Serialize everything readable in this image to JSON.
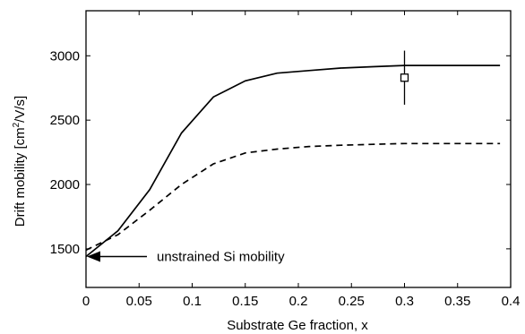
{
  "chart_data": {
    "type": "line",
    "title": "",
    "xlabel": "Substrate Ge fraction, x",
    "ylabel_main": "Drift mobility [cm",
    "ylabel_sup": "2",
    "ylabel_tail": "/V/s]",
    "xlim": [
      0,
      0.4
    ],
    "ylim": [
      1200,
      3350
    ],
    "xticks": [
      0,
      0.05,
      0.1,
      0.15,
      0.2,
      0.25,
      0.3,
      0.35,
      0.4
    ],
    "xtick_labels": [
      "0",
      "0.05",
      "0.1",
      "0.15",
      "0.2",
      "0.25",
      "0.3",
      "0.35",
      "0.4"
    ],
    "yticks": [
      1500,
      2000,
      2500,
      3000
    ],
    "ytick_labels": [
      "1500",
      "2000",
      "2500",
      "3000"
    ],
    "grid": false,
    "series": [
      {
        "style": "solid",
        "x": [
          0,
          0.03,
          0.06,
          0.09,
          0.12,
          0.15,
          0.18,
          0.21,
          0.24,
          0.27,
          0.3,
          0.33,
          0.36,
          0.39
        ],
        "y": [
          1440,
          1640,
          1960,
          2400,
          2680,
          2805,
          2865,
          2885,
          2905,
          2915,
          2925,
          2925,
          2925,
          2925
        ]
      },
      {
        "style": "dashed",
        "x": [
          0,
          0.03,
          0.06,
          0.09,
          0.12,
          0.15,
          0.18,
          0.21,
          0.24,
          0.27,
          0.3,
          0.33,
          0.36,
          0.39
        ],
        "y": [
          1490,
          1610,
          1800,
          2000,
          2160,
          2245,
          2275,
          2295,
          2305,
          2312,
          2318,
          2318,
          2318,
          2318
        ]
      }
    ],
    "measured_point": {
      "x": 0.3,
      "y": 2830,
      "err_low": 2620,
      "err_high": 3040
    },
    "annotation": {
      "text": "unstrained Si mobility",
      "x": 0,
      "y": 1440
    }
  }
}
